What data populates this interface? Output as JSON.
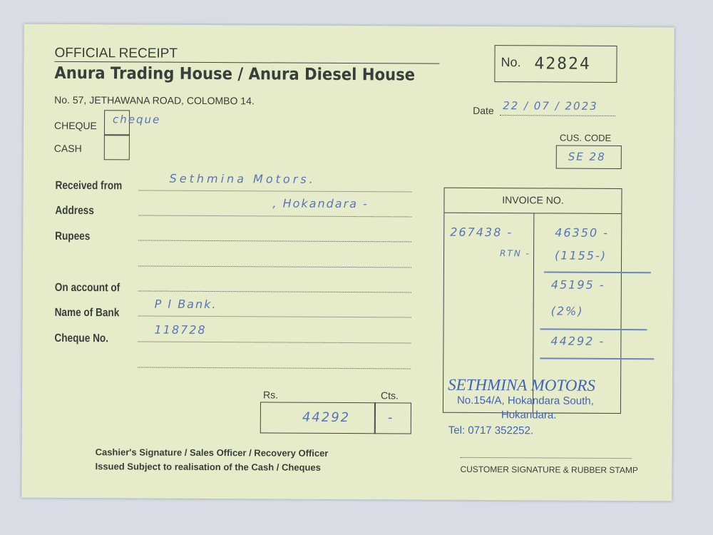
{
  "header": {
    "title": "OFFICIAL RECEIPT",
    "company": "Anura Trading House / Anura Diesel House",
    "address": "No. 57, JETHAWANA ROAD, COLOMBO 14.",
    "receipt_no_label": "No.",
    "receipt_no": "42824"
  },
  "payment": {
    "cheque_label": "CHEQUE",
    "cash_label": "CASH",
    "cheque_note": "cheque"
  },
  "date": {
    "label": "Date",
    "value": "22 / 07 / 2023"
  },
  "customer": {
    "code_label": "CUS. CODE",
    "code": "SE 28"
  },
  "fields": {
    "received_from_label": "Received from",
    "received_from": "Sethmina Motors.",
    "address_label": "Address",
    "address": ", Hokandara -",
    "rupees_label": "Rupees",
    "on_account_label": "On account of",
    "bank_label": "Name of Bank",
    "bank": "P I Bank.",
    "cheque_no_label": "Cheque No.",
    "cheque_no": "118728"
  },
  "amount": {
    "rs_label": "Rs.",
    "cts_label": "Cts.",
    "rs": "44292",
    "cts": "-"
  },
  "invoice": {
    "header": "INVOICE NO.",
    "number": "267438 -",
    "rtn_label": "RTN -",
    "lines": [
      "46350 -",
      "(1155-)",
      "45195 -",
      "(2%)",
      "44292 -"
    ]
  },
  "stamp": {
    "name": "SETHMINA MOTORS",
    "address1": "No.154/A, Hokandara South,",
    "address2": "Hokandara.",
    "tel": "Tel: 0717 352252."
  },
  "footer": {
    "cashier": "Cashier's Signature / Sales Officer / Recovery Officer",
    "issued": "Issued Subject to realisation of the Cash / Cheques",
    "customer_sig": "CUSTOMER SIGNATURE & RUBBER STAMP"
  }
}
